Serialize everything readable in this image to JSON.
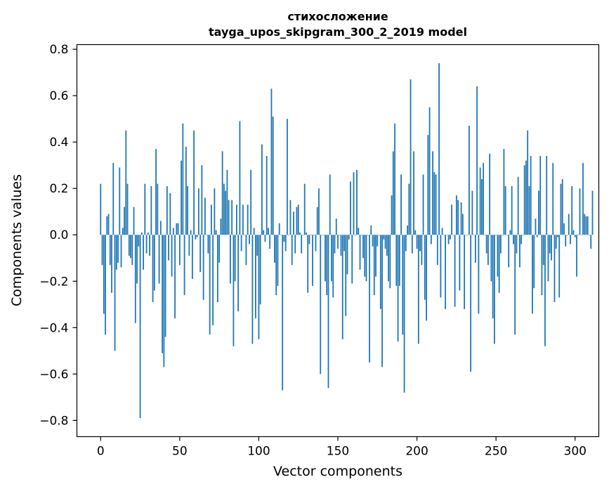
{
  "chart_data": {
    "type": "bar",
    "title": "стихосложение",
    "subtitle": "tayga_upos_skipgram_300_2_2019 model",
    "xlabel": "Vector components",
    "ylabel": "Components values",
    "xlim": [
      -15,
      315
    ],
    "ylim": [
      -0.87,
      0.82
    ],
    "xticks": [
      0,
      50,
      100,
      150,
      200,
      250,
      300
    ],
    "xtick_labels": [
      "0",
      "50",
      "100",
      "150",
      "200",
      "250",
      "300"
    ],
    "yticks": [
      -0.8,
      -0.6,
      -0.4,
      -0.2,
      0.0,
      0.2,
      0.4,
      0.6,
      0.8
    ],
    "ytick_labels": [
      "−0.8",
      "−0.6",
      "−0.4",
      "−0.2",
      "0.0",
      "0.2",
      "0.4",
      "0.6",
      "0.8"
    ],
    "grid": false,
    "bar_color": "#1f77b4",
    "series": [
      {
        "values": [
          0.22,
          -0.13,
          -0.34,
          -0.43,
          0.08,
          0.09,
          -0.13,
          -0.25,
          0.31,
          -0.5,
          -0.15,
          -0.12,
          0.29,
          -0.14,
          0.03,
          0.12,
          0.45,
          0.22,
          -0.09,
          -0.1,
          -0.13,
          0.12,
          -0.38,
          -0.21,
          -0.05,
          -0.79,
          0.01,
          -0.15,
          0.22,
          -0.08,
          0.01,
          -0.09,
          0.21,
          -0.29,
          -0.24,
          0.37,
          0.22,
          -0.21,
          0.06,
          -0.51,
          -0.57,
          -0.44,
          0.21,
          -0.11,
          0.18,
          -0.18,
          0.03,
          -0.36,
          0.05,
          0.05,
          -0.13,
          0.32,
          0.48,
          -0.26,
          0.38,
          0.21,
          -0.09,
          0.02,
          -0.19,
          0.45,
          -0.02,
          -0.01,
          0.2,
          -0.16,
          0.3,
          -0.28,
          0.16,
          0.0,
          -0.08,
          -0.43,
          0.13,
          -0.39,
          0.2,
          0.02,
          -0.29,
          -0.12,
          0.07,
          0.36,
          0.22,
          0.19,
          0.28,
          0.15,
          -0.21,
          0.15,
          -0.48,
          -0.2,
          0.13,
          -0.33,
          0.49,
          -0.07,
          0.13,
          0.0,
          -0.13,
          0.13,
          -0.04,
          0.28,
          -0.47,
          0.03,
          -0.36,
          -0.09,
          -0.45,
          -0.3,
          0.39,
          0.02,
          -0.03,
          0.34,
          0.03,
          -0.06,
          0.63,
          0.51,
          -0.12,
          -0.26,
          -0.22,
          0.05,
          0.0,
          -0.67,
          -0.03,
          -0.07,
          0.5,
          0.0,
          0.15,
          -0.13,
          0.1,
          -0.08,
          0.12,
          0.13,
          0.01,
          -0.08,
          0.0,
          0.22,
          0.01,
          -0.25,
          -0.04,
          0.0,
          -0.22,
          0.0,
          -0.07,
          0.12,
          0.2,
          -0.6,
          0.0,
          0.0,
          -0.2,
          -0.26,
          -0.66,
          0.26,
          -0.2,
          -0.27,
          -0.08,
          0.07,
          -0.06,
          0.0,
          -0.09,
          -0.45,
          -0.07,
          -0.35,
          -0.17,
          -0.02,
          0.23,
          -0.21,
          0.27,
          0.0,
          0.28,
          0.03,
          -0.15,
          0.0,
          -0.1,
          -0.18,
          -0.2,
          0.0,
          -0.55,
          0.04,
          -0.05,
          -0.26,
          -0.18,
          -0.05,
          0.0,
          -0.32,
          -0.57,
          -0.02,
          -0.06,
          -0.09,
          -0.2,
          -0.23,
          0.17,
          0.36,
          0.48,
          -0.22,
          -0.46,
          -0.22,
          0.26,
          -0.43,
          -0.68,
          -0.07,
          0.04,
          0.22,
          0.67,
          -0.08,
          0.36,
          0.02,
          -0.06,
          -0.47,
          -0.07,
          -0.13,
          0.26,
          -0.28,
          -0.37,
          0.43,
          0.55,
          -0.04,
          0.36,
          0.27,
          0.26,
          -0.13,
          0.74,
          -0.27,
          0.03,
          0.0,
          -0.32,
          0.0,
          -0.04,
          -0.02,
          0.13,
          0.0,
          -0.31,
          0.17,
          0.15,
          -0.24,
          0.14,
          0.09,
          -0.32,
          0.0,
          0.0,
          0.47,
          -0.59,
          0.19,
          0.0,
          -0.12,
          0.64,
          -0.34,
          0.29,
          0.24,
          0.31,
          0.0,
          -0.08,
          -0.13,
          0.35,
          -0.2,
          -0.36,
          -0.47,
          0.0,
          -0.18,
          -0.25,
          -0.08,
          0.0,
          0.37,
          0.21,
          0.0,
          -0.14,
          0.02,
          0.21,
          -0.04,
          -0.43,
          -0.08,
          0.25,
          -0.14,
          -0.04,
          0.0,
          0.3,
          0.32,
          0.45,
          0.21,
          0.34,
          -0.34,
          -0.23,
          0.07,
          -0.01,
          0.19,
          0.34,
          -0.26,
          -0.13,
          -0.48,
          0.34,
          -0.2,
          -0.08,
          -0.11,
          0.31,
          -0.29,
          -0.06,
          -0.01,
          -0.27,
          0.22,
          0.24,
          0.05,
          -0.05,
          0.0,
          0.09,
          -0.04,
          0.21,
          0.02,
          -0.01,
          -0.18,
          0.0,
          0.2,
          0.0,
          0.31,
          0.09,
          0.08,
          0.08,
          0.0,
          -0.06,
          0.19
        ]
      }
    ]
  }
}
